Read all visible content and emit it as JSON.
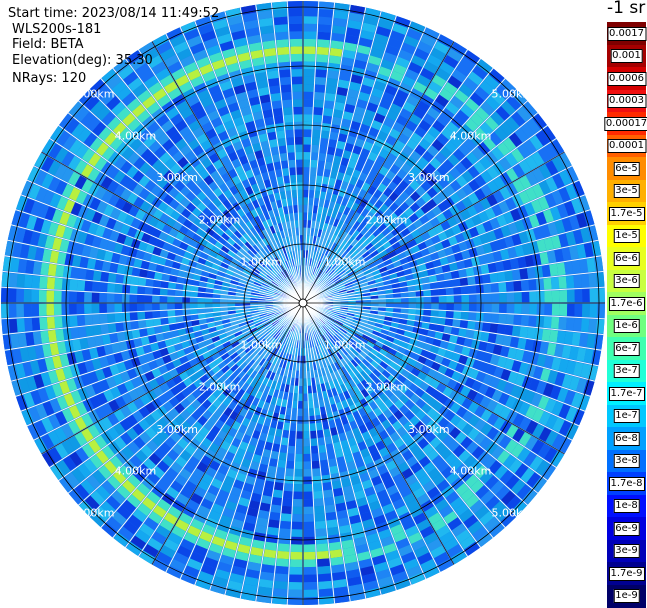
{
  "info": {
    "start_time": "Start time: 2023/08/14 11:49:52",
    "instrument": "WLS200s-181",
    "field": "Field: BETA",
    "elevation": "Elevation(deg): 35.30",
    "nrays": "NRays: 120"
  },
  "colorbar": {
    "title": "-1 sr",
    "labels": [
      "0.0017",
      "0.001",
      "0.0006",
      "0.0003",
      "0.00017",
      "0.0001",
      "6e-5",
      "3e-5",
      "1.7e-5",
      "1e-5",
      "6e-6",
      "3e-6",
      "1.7e-6",
      "1e-6",
      "6e-7",
      "3e-7",
      "1.7e-7",
      "1e-7",
      "6e-8",
      "3e-8",
      "1.7e-8",
      "1e-8",
      "6e-9",
      "3e-9",
      "1.7e-9",
      "1e-9"
    ],
    "colors": [
      "#7f0000",
      "#a50000",
      "#d40000",
      "#f01010",
      "#ff2a00",
      "#ff6000",
      "#ff8c00",
      "#ffb000",
      "#ffd000",
      "#ffff00",
      "#e8ff20",
      "#c8ff40",
      "#a0ff60",
      "#70ff80",
      "#40ffb0",
      "#20ffd8",
      "#00f0ff",
      "#00c8ff",
      "#00a0ff",
      "#0070ff",
      "#0040ff",
      "#0010ff",
      "#0000e0",
      "#0000b8",
      "#000090",
      "#000068"
    ]
  },
  "ppi": {
    "range_labels": [
      "1.00km",
      "2.00km",
      "3.00km",
      "4.00km",
      "5.00km"
    ],
    "n_rays": 120
  }
}
